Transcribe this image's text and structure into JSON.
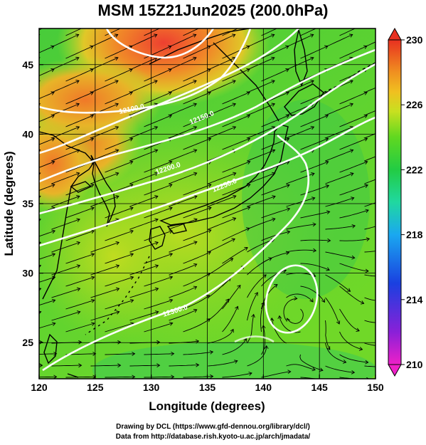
{
  "title": "MSM 15Z21Jun2025 (200.0hPa)",
  "x_axis": {
    "label": "Longitude (degrees)",
    "ticks": [
      "120",
      "125",
      "130",
      "135",
      "140",
      "145",
      "150"
    ],
    "values": [
      120,
      125,
      130,
      135,
      140,
      145,
      150
    ]
  },
  "y_axis": {
    "label": "Latitude  (degrees)",
    "ticks": [
      "25",
      "30",
      "35",
      "40",
      "45"
    ],
    "values": [
      25,
      30,
      35,
      40,
      45
    ]
  },
  "colorbar": {
    "ticks": [
      "230",
      "226",
      "222",
      "218",
      "214",
      "210"
    ],
    "values": [
      230,
      226,
      222,
      218,
      214,
      210
    ],
    "range": [
      210,
      230
    ]
  },
  "contour_labels": [
    "12300.0",
    "12250.0",
    "12200.0",
    "12150.0",
    "12100.0"
  ],
  "credits": {
    "line1": "Drawing by DCL (https://www.gfd-dennou.org/library/dcl/)",
    "line2": "Data from http://database.rish.kyoto-u.ac.jp/arch/jmadata/"
  },
  "chart_data": {
    "type": "heatmap",
    "title": "MSM 15Z21Jun2025 (200.0hPa)",
    "xlabel": "Longitude (degrees)",
    "ylabel": "Latitude  (degrees)",
    "xlim": [
      120,
      150
    ],
    "ylim": [
      22.4,
      47.6
    ],
    "colorbar_range": [
      210,
      230
    ],
    "overlays": [
      "geopotential height contours (white)",
      "wind streamlines (black)",
      "coastlines"
    ]
  }
}
